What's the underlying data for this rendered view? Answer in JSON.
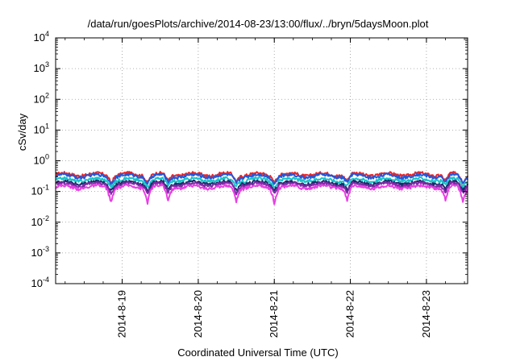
{
  "chart_data": {
    "type": "line",
    "title": "/data/run/goesPlots/archive/2014-08-23/13:00/flux/../bryn/5daysMoon.plot",
    "xlabel": "Coordinated Universal Time (UTC)",
    "ylabel": "cSv/day",
    "yscale": "log",
    "ylim": [
      0.0001,
      10000
    ],
    "yticks": [
      {
        "value": 0.0001,
        "base": "10",
        "exp": "-4"
      },
      {
        "value": 0.001,
        "base": "10",
        "exp": "-3"
      },
      {
        "value": 0.01,
        "base": "10",
        "exp": "-2"
      },
      {
        "value": 0.1,
        "base": "10",
        "exp": "-1"
      },
      {
        "value": 1,
        "base": "10",
        "exp": "0"
      },
      {
        "value": 10,
        "base": "10",
        "exp": "1"
      },
      {
        "value": 100,
        "base": "10",
        "exp": "2"
      },
      {
        "value": 1000,
        "base": "10",
        "exp": "3"
      },
      {
        "value": 10000,
        "base": "10",
        "exp": "4"
      }
    ],
    "xlim": [
      "2014-08-18 03:00",
      "2014-08-23 13:00"
    ],
    "xticks": [
      "2014-8-19",
      "2014-8-20",
      "2014-8-21",
      "2014-8-22",
      "2014-8-23"
    ],
    "grid": true,
    "series": [
      {
        "color": "#e8262a",
        "base": 0.36,
        "dip": 0.6
      },
      {
        "color": "#2457d8",
        "base": 0.32,
        "dip": 0.62
      },
      {
        "color": "#18c3c8",
        "base": 0.24,
        "dip": 0.64
      },
      {
        "color": "#1a2a6c",
        "base": 0.19,
        "dip": 0.6
      },
      {
        "color": "#7f2aa6",
        "base": 0.17,
        "dip": 0.55
      },
      {
        "color": "#e73fe3",
        "base": 0.14,
        "dip": 0.35
      }
    ]
  }
}
